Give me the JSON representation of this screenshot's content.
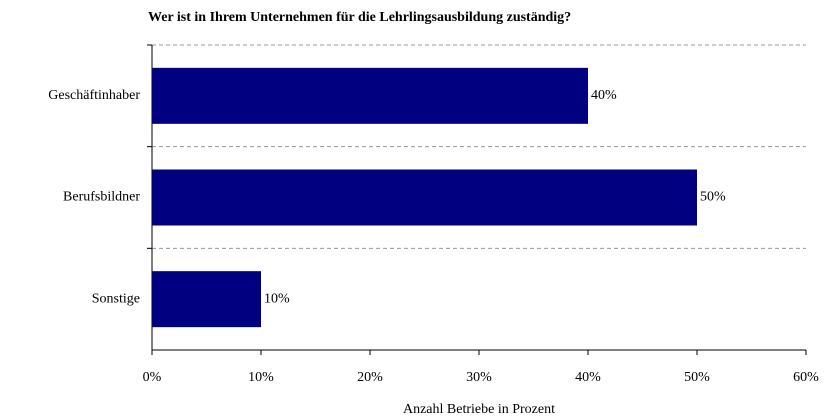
{
  "chart_data": {
    "type": "bar",
    "orientation": "horizontal",
    "title": "Wer ist in Ihrem Unternehmen für die Lehrlingsausbildung zuständig?",
    "xlabel": "Anzahl Betriebe in Prozent",
    "categories": [
      "Geschäftinhaber",
      "Berufsbildner",
      "Sonstige"
    ],
    "values": [
      40,
      50,
      10
    ],
    "value_labels": [
      "40%",
      "50%",
      "10%"
    ],
    "color": "#000080",
    "xlim": [
      0,
      60
    ],
    "xticks": [
      {
        "value": 0,
        "label": "0%"
      },
      {
        "value": 10,
        "label": "10%"
      },
      {
        "value": 20,
        "label": "20%"
      },
      {
        "value": 30,
        "label": "30%"
      },
      {
        "value": 40,
        "label": "40%"
      },
      {
        "value": 50,
        "label": "50%"
      },
      {
        "value": 60,
        "label": "60%"
      }
    ]
  }
}
